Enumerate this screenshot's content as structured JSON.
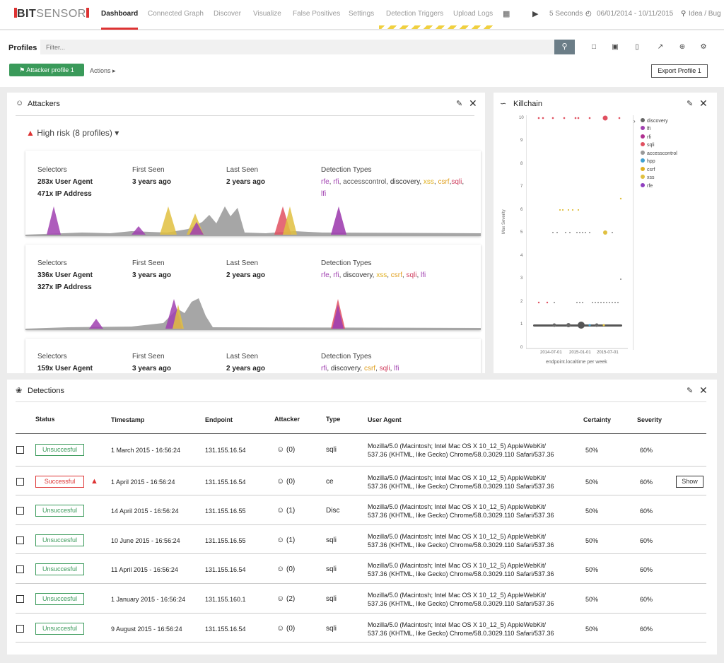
{
  "app": {
    "logo_prefix": "BIT",
    "logo_suffix": "SENSOR"
  },
  "nav": {
    "items": [
      {
        "label": "Dashboard",
        "active": true
      },
      {
        "label": "Connected Graph"
      },
      {
        "label": "Discover"
      },
      {
        "label": "Visualize"
      },
      {
        "label": "False Positives"
      },
      {
        "label": "Settings"
      },
      {
        "label": "Detection Triggers"
      },
      {
        "label": "Upload Logs"
      }
    ],
    "grid_icon": "grid-icon",
    "refresh": "5 Seconds",
    "date_range": "06/01/2014 - 10/11/2015",
    "idea": "Idea / Bug"
  },
  "profiles": {
    "label": "Profiles",
    "filter_placeholder": "Filter...",
    "profile_button": "Attacker profile 1",
    "actions": "Actions",
    "export": "Export Profile 1"
  },
  "attackers": {
    "title": "Attackers",
    "risk": "High risk (8 profiles)",
    "cards": [
      {
        "selectors_label": "Selectors",
        "first_seen_label": "First Seen",
        "last_seen_label": "Last Seen",
        "types_label": "Detection Types",
        "sel1": "283x User Agent",
        "sel2": "471x IP Address",
        "first_seen": "3 years ago",
        "last_seen": "2 years ago",
        "types": [
          [
            "rfe",
            ", ",
            "purple"
          ],
          [
            "rfi",
            ", ",
            "purple"
          ],
          [
            "accesscontrol",
            ", ",
            "gray"
          ],
          [
            "discovery",
            ", ",
            "dark"
          ],
          [
            "xss",
            ", ",
            "yellow"
          ],
          [
            "csrf",
            ",",
            "orange"
          ],
          [
            "sqli",
            ", ",
            "red"
          ],
          [
            "lfi",
            "",
            "purple"
          ]
        ]
      },
      {
        "selectors_label": "Selectors",
        "first_seen_label": "First Seen",
        "last_seen_label": "Last Seen",
        "types_label": "Detection Types",
        "sel1": "336x User Agent",
        "sel2": "327x IP Address",
        "first_seen": "3 years ago",
        "last_seen": "2 years ago",
        "types": [
          [
            "rfe",
            ", ",
            "purple"
          ],
          [
            "rfi",
            ", ",
            "purple"
          ],
          [
            "discovery",
            ", ",
            "dark"
          ],
          [
            "xss",
            ", ",
            "yellow"
          ],
          [
            "csrf",
            ", ",
            "orange"
          ],
          [
            "sqli",
            ", ",
            "red"
          ],
          [
            "lfi",
            "",
            "purple"
          ]
        ]
      },
      {
        "selectors_label": "Selectors",
        "first_seen_label": "First Seen",
        "last_seen_label": "Last Seen",
        "types_label": "Detection Types",
        "sel1": "159x User Agent",
        "sel2": "",
        "first_seen": "3 years ago",
        "last_seen": "2 years ago",
        "types": [
          [
            "rfi",
            ", ",
            "purple"
          ],
          [
            "discovery",
            ", ",
            "dark"
          ],
          [
            "csrf",
            ", ",
            "orange"
          ],
          [
            "sqli",
            ", ",
            "red"
          ],
          [
            "lfi",
            "",
            "purple"
          ]
        ]
      }
    ]
  },
  "killchain": {
    "title": "Killchain",
    "ylabel": "Max Severity",
    "xlabel": "endpoint.localtime per week",
    "yticks": [
      "10",
      "9",
      "8",
      "7",
      "6",
      "5",
      "4",
      "3",
      "2",
      "1",
      "0"
    ],
    "xticks": [
      "2014-07-01",
      "2015-01-01",
      "2015-07-01"
    ],
    "legend": [
      {
        "name": "discovery",
        "color": "#666666"
      },
      {
        "name": "lfi",
        "color": "#a040b0"
      },
      {
        "name": "rfi",
        "color": "#b03090"
      },
      {
        "name": "sqli",
        "color": "#e05060"
      },
      {
        "name": "accesscontrol",
        "color": "#999999"
      },
      {
        "name": "hpp",
        "color": "#40a0d0"
      },
      {
        "name": "csrf",
        "color": "#e0b020"
      },
      {
        "name": "xss",
        "color": "#e0c040"
      },
      {
        "name": "rfe",
        "color": "#9040c0"
      }
    ]
  },
  "detections": {
    "title": "Detections",
    "headers": {
      "status": "Status",
      "timestamp": "Timestamp",
      "endpoint": "Endpoint",
      "attacker": "Attacker",
      "type": "Type",
      "user_agent": "User Agent",
      "certainty": "Certainty",
      "severity": "Severity"
    },
    "rows": [
      {
        "status": "Unsuccesful",
        "ok": true,
        "timestamp": "1 March 2015 - 16:56:24",
        "endpoint": "131.155.16.54",
        "attacker": "(0)",
        "type": "sqli",
        "ua1": "Mozilla/5.0 (Macintosh; Intel Mac OS X 10_12_5) AppleWebKit/",
        "ua2": "537.36 (KHTML, like Gecko) Chrome/58.0.3029.110 Safari/537.36",
        "certainty": "50%",
        "severity": "60%"
      },
      {
        "status": "Successful",
        "ok": false,
        "timestamp": "1 April 2015 - 16:56:24",
        "endpoint": "131.155.16.54",
        "attacker": "(0)",
        "type": "ce",
        "ua1": "Mozilla/5.0 (Macintosh; Intel Mac OS X 10_12_5) AppleWebKit/",
        "ua2": "537.36 (KHTML, like Gecko) Chrome/58.0.3029.110 Safari/537.36",
        "certainty": "50%",
        "severity": "60%",
        "show": "Show"
      },
      {
        "status": "Unsuccesful",
        "ok": true,
        "timestamp": "14 April 2015 - 16:56:24",
        "endpoint": "131.155.16.55",
        "attacker": "(1)",
        "type": "Disc",
        "ua1": "Mozilla/5.0 (Macintosh; Intel Mac OS X 10_12_5) AppleWebKit/",
        "ua2": "537.36 (KHTML, like Gecko) Chrome/58.0.3029.110 Safari/537.36",
        "certainty": "50%",
        "severity": "60%"
      },
      {
        "status": "Unsuccesful",
        "ok": true,
        "timestamp": "10 June 2015 - 16:56:24",
        "endpoint": "131.155.16.55",
        "attacker": "(1)",
        "type": "sqli",
        "ua1": "Mozilla/5.0 (Macintosh; Intel Mac OS X 10_12_5) AppleWebKit/",
        "ua2": "537.36 (KHTML, like Gecko) Chrome/58.0.3029.110 Safari/537.36",
        "certainty": "50%",
        "severity": "60%"
      },
      {
        "status": "Unsuccesful",
        "ok": true,
        "timestamp": "11 April 2015 - 16:56:24",
        "endpoint": "131.155.16.54",
        "attacker": "(0)",
        "type": "sqli",
        "ua1": "Mozilla/5.0 (Macintosh; Intel Mac OS X 10_12_5) AppleWebKit/",
        "ua2": "537.36 (KHTML, like Gecko) Chrome/58.0.3029.110 Safari/537.36",
        "certainty": "50%",
        "severity": "60%"
      },
      {
        "status": "Unsuccesful",
        "ok": true,
        "timestamp": "1 January 2015 - 16:56:24",
        "endpoint": "131.155.160.1",
        "attacker": "(2)",
        "type": "sqli",
        "ua1": "Mozilla/5.0 (Macintosh; Intel Mac OS X 10_12_5) AppleWebKit/",
        "ua2": "537.36 (KHTML, like Gecko) Chrome/58.0.3029.110 Safari/537.36",
        "certainty": "50%",
        "severity": "60%"
      },
      {
        "status": "Unsuccesful",
        "ok": true,
        "timestamp": "9 August 2015 - 16:56:24",
        "endpoint": "131.155.16.54",
        "attacker": "(0)",
        "type": "sqli",
        "ua1": "Mozilla/5.0 (Macintosh; Intel Mac OS X 10_12_5) AppleWebKit/",
        "ua2": "537.36 (KHTML, like Gecko) Chrome/58.0.3029.110 Safari/537.36",
        "certainty": "50%",
        "severity": "60%"
      }
    ]
  }
}
